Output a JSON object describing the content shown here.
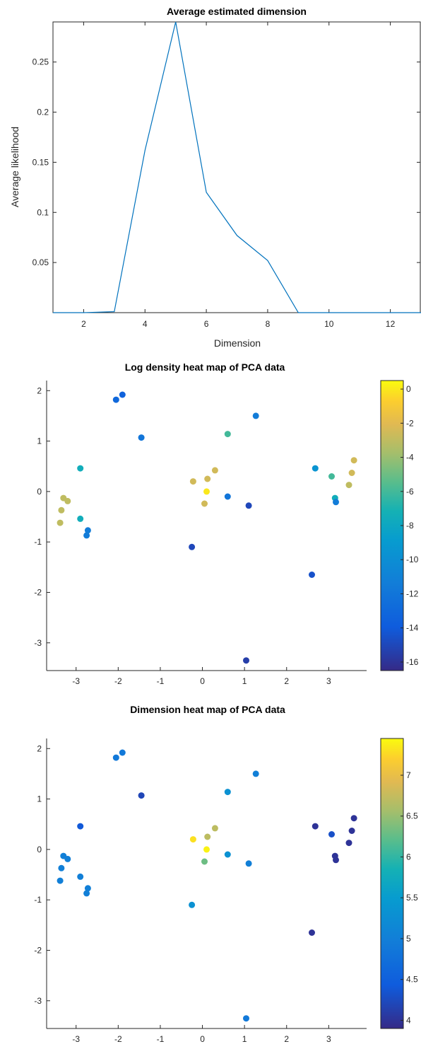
{
  "chart_data": [
    {
      "type": "line",
      "title": "Average estimated dimension",
      "xlabel": "Dimension",
      "ylabel": "Average likelihood",
      "xlim": [
        1,
        13
      ],
      "ylim": [
        0,
        0.29
      ],
      "xticks": [
        "2",
        "4",
        "6",
        "8",
        "10",
        "12"
      ],
      "yticks": [
        "0.05",
        "0.1",
        "0.15",
        "0.2",
        "0.25"
      ],
      "grid": false,
      "x": [
        1,
        2,
        3,
        4,
        5,
        6,
        7,
        8,
        9,
        10,
        11,
        12,
        13
      ],
      "y": [
        0,
        0,
        0.001,
        0.162,
        0.29,
        0.12,
        0.077,
        0.052,
        0,
        0,
        0,
        0,
        0
      ],
      "color": "#0072bd"
    },
    {
      "type": "scatter",
      "title": "Log density heat map of PCA data",
      "xlim": [
        -3.7,
        3.9
      ],
      "ylim": [
        -3.55,
        2.2
      ],
      "xticks": [
        "-3",
        "-2",
        "-1",
        "0",
        "1",
        "2",
        "3"
      ],
      "yticks": [
        "2",
        "1",
        "0",
        "-1",
        "-2",
        "-3"
      ],
      "colorbar": {
        "range": [
          -16.5,
          0.5
        ],
        "ticks": [
          "0",
          "-2",
          "-4",
          "-6",
          "-8",
          "-10",
          "-12",
          "-14",
          "-16"
        ]
      },
      "points": [
        {
          "x": -2.05,
          "y": 1.82,
          "c": -13.0
        },
        {
          "x": -1.9,
          "y": 1.92,
          "c": -13.5
        },
        {
          "x": -1.45,
          "y": 1.07,
          "c": -12.0
        },
        {
          "x": -2.9,
          "y": 0.46,
          "c": -7.5
        },
        {
          "x": -3.3,
          "y": -0.13,
          "c": -3.0
        },
        {
          "x": -3.2,
          "y": -0.19,
          "c": -3.0
        },
        {
          "x": -3.35,
          "y": -0.37,
          "c": -3.0
        },
        {
          "x": -3.38,
          "y": -0.62,
          "c": -3.0
        },
        {
          "x": -2.9,
          "y": -0.54,
          "c": -7.5
        },
        {
          "x": -2.72,
          "y": -0.77,
          "c": -11.5
        },
        {
          "x": -2.75,
          "y": -0.87,
          "c": -11.5
        },
        {
          "x": -0.22,
          "y": 0.2,
          "c": -2.5
        },
        {
          "x": 0.12,
          "y": 0.25,
          "c": -2.5
        },
        {
          "x": 0.3,
          "y": 0.42,
          "c": -2.5
        },
        {
          "x": 0.1,
          "y": 0.0,
          "c": 0.0
        },
        {
          "x": 0.05,
          "y": -0.24,
          "c": -2.5
        },
        {
          "x": 0.6,
          "y": 1.14,
          "c": -6.0
        },
        {
          "x": 0.6,
          "y": -0.1,
          "c": -12.0
        },
        {
          "x": 1.1,
          "y": -0.28,
          "c": -15.0
        },
        {
          "x": 1.27,
          "y": 1.5,
          "c": -11.5
        },
        {
          "x": -0.25,
          "y": -1.1,
          "c": -15.0
        },
        {
          "x": 1.04,
          "y": -3.35,
          "c": -15.5
        },
        {
          "x": 2.6,
          "y": -1.65,
          "c": -14.5
        },
        {
          "x": 2.68,
          "y": 0.46,
          "c": -9.5
        },
        {
          "x": 3.07,
          "y": 0.3,
          "c": -6.0
        },
        {
          "x": 3.15,
          "y": -0.13,
          "c": -7.5
        },
        {
          "x": 3.17,
          "y": -0.21,
          "c": -11.5
        },
        {
          "x": 3.48,
          "y": 0.13,
          "c": -3.0
        },
        {
          "x": 3.55,
          "y": 0.37,
          "c": -2.5
        },
        {
          "x": 3.6,
          "y": 0.62,
          "c": -2.5
        }
      ]
    },
    {
      "type": "scatter",
      "title": "Dimension heat map of PCA data",
      "xlim": [
        -3.7,
        3.9
      ],
      "ylim": [
        -3.55,
        2.2
      ],
      "xticks": [
        "-3",
        "-2",
        "-1",
        "0",
        "1",
        "2",
        "3"
      ],
      "yticks": [
        "2",
        "1",
        "0",
        "-1",
        "-2",
        "-3"
      ],
      "colorbar": {
        "range": [
          3.9,
          7.45
        ],
        "ticks": [
          "7",
          "6.5",
          "6",
          "5.5",
          "5",
          "4.5",
          "4"
        ]
      },
      "points": [
        {
          "x": -2.05,
          "y": 1.82,
          "c": 4.9
        },
        {
          "x": -1.9,
          "y": 1.92,
          "c": 4.9
        },
        {
          "x": -1.45,
          "y": 1.07,
          "c": 4.2
        },
        {
          "x": -2.9,
          "y": 0.46,
          "c": 4.4
        },
        {
          "x": -3.3,
          "y": -0.13,
          "c": 5.0
        },
        {
          "x": -3.2,
          "y": -0.19,
          "c": 5.0
        },
        {
          "x": -3.35,
          "y": -0.37,
          "c": 5.0
        },
        {
          "x": -3.38,
          "y": -0.62,
          "c": 5.0
        },
        {
          "x": -2.9,
          "y": -0.54,
          "c": 5.0
        },
        {
          "x": -2.72,
          "y": -0.77,
          "c": 5.0
        },
        {
          "x": -2.75,
          "y": -0.87,
          "c": 5.0
        },
        {
          "x": -0.22,
          "y": 0.2,
          "c": 7.3
        },
        {
          "x": 0.12,
          "y": 0.25,
          "c": 6.7
        },
        {
          "x": 0.3,
          "y": 0.42,
          "c": 6.7
        },
        {
          "x": 0.1,
          "y": 0.0,
          "c": 7.4
        },
        {
          "x": 0.05,
          "y": -0.24,
          "c": 6.3
        },
        {
          "x": 0.6,
          "y": 1.14,
          "c": 5.3
        },
        {
          "x": 0.6,
          "y": -0.1,
          "c": 5.3
        },
        {
          "x": 1.1,
          "y": -0.28,
          "c": 5.0
        },
        {
          "x": 1.27,
          "y": 1.5,
          "c": 5.0
        },
        {
          "x": -0.25,
          "y": -1.1,
          "c": 5.3
        },
        {
          "x": 1.04,
          "y": -3.35,
          "c": 4.9
        },
        {
          "x": 2.6,
          "y": -1.65,
          "c": 4.0
        },
        {
          "x": 2.68,
          "y": 0.46,
          "c": 4.0
        },
        {
          "x": 3.07,
          "y": 0.3,
          "c": 4.3
        },
        {
          "x": 3.15,
          "y": -0.13,
          "c": 4.0
        },
        {
          "x": 3.17,
          "y": -0.21,
          "c": 4.0
        },
        {
          "x": 3.48,
          "y": 0.13,
          "c": 4.0
        },
        {
          "x": 3.55,
          "y": 0.37,
          "c": 4.0
        },
        {
          "x": 3.6,
          "y": 0.62,
          "c": 4.0
        }
      ]
    }
  ]
}
